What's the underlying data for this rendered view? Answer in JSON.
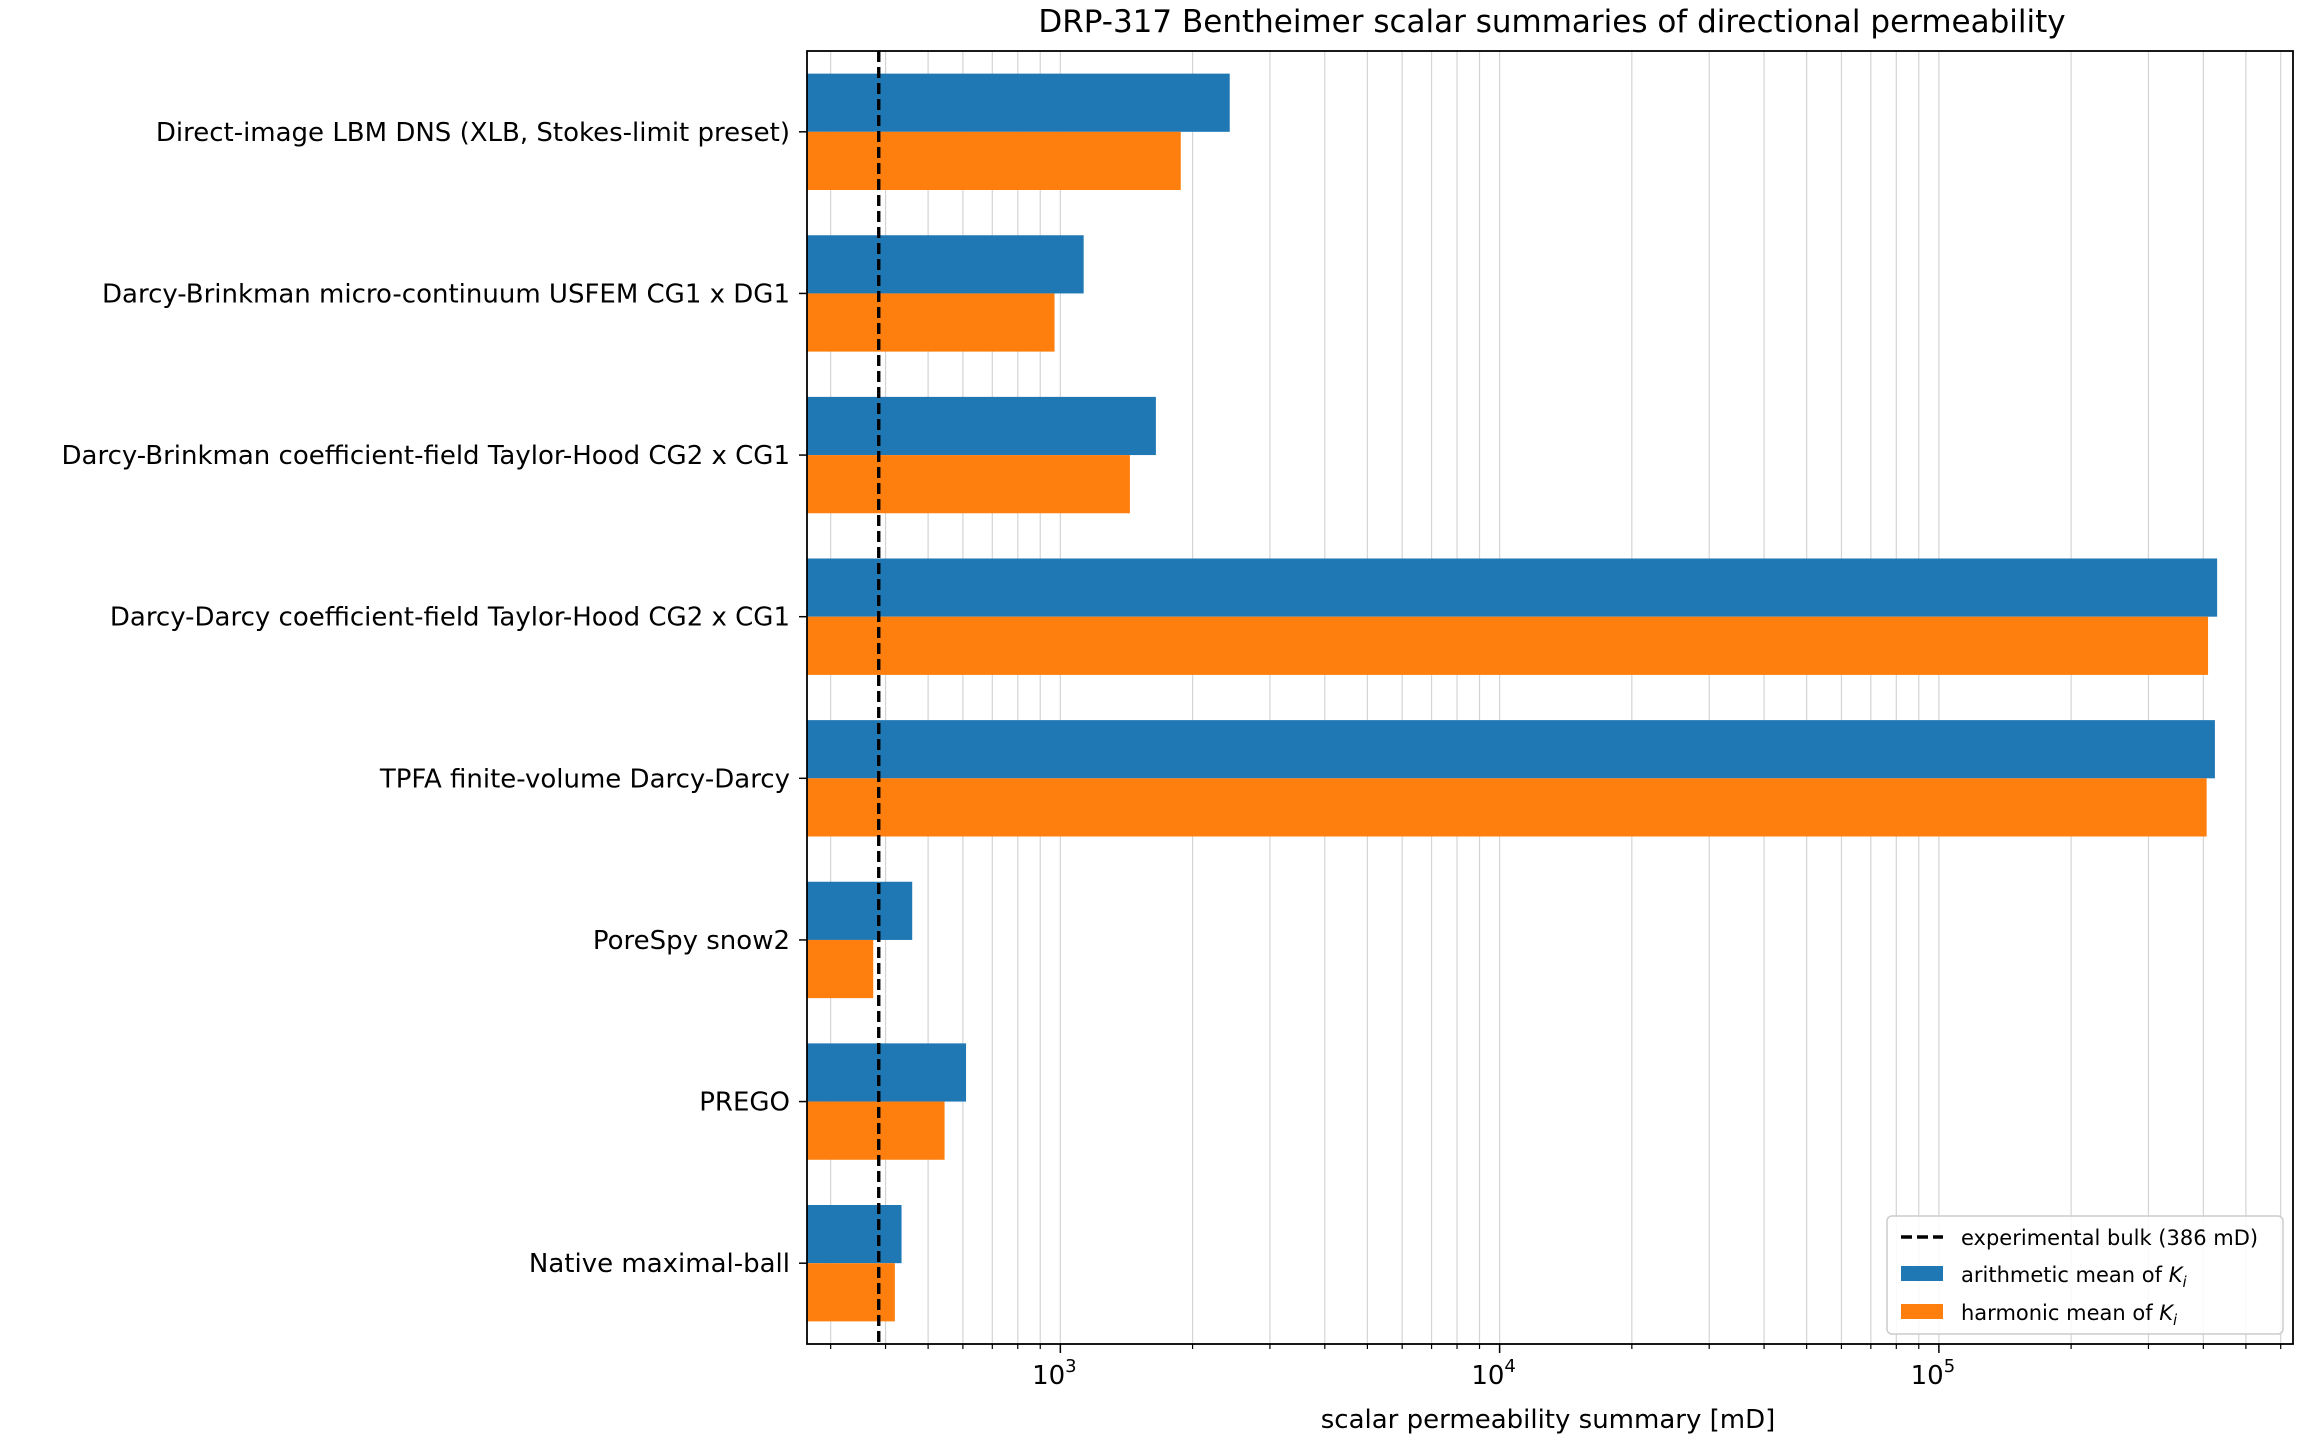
{
  "chart_data": {
    "type": "bar",
    "orientation": "horizontal",
    "title": "DRP-317 Bentheimer scalar summaries of directional permeability",
    "xlabel": "scalar permeability summary [mD]",
    "ylabel": "",
    "xscale": "log",
    "xlim": [
      265,
      640000
    ],
    "xticks": [
      {
        "value": 1000,
        "base": "10",
        "exp": "3"
      },
      {
        "value": 10000,
        "base": "10",
        "exp": "4"
      },
      {
        "value": 100000,
        "base": "10",
        "exp": "5"
      }
    ],
    "grid": "x-axis major and minor",
    "legend_position": "lower-right",
    "categories": [
      "Direct-image LBM DNS (XLB, Stokes-limit preset)",
      "Darcy-Brinkman micro-continuum USFEM CG1 x DG1",
      "Darcy-Brinkman coefficient-field Taylor-Hood CG2 x CG1",
      "Darcy-Darcy coefficient-field Taylor-Hood CG2 x CG1",
      "TPFA finite-volume Darcy-Darcy",
      "PoreSpy snow2",
      "PREGO",
      "Native maximal-ball"
    ],
    "series": [
      {
        "name": "arithmetic mean of K_i",
        "color": "#1f77b4",
        "values": [
          2430,
          1130,
          1650,
          430000,
          425000,
          460,
          610,
          435
        ]
      },
      {
        "name": "harmonic mean of K_i",
        "color": "#ff7f0e",
        "values": [
          1880,
          970,
          1440,
          410000,
          407000,
          375,
          545,
          420
        ]
      }
    ],
    "reference_lines": [
      {
        "label": "experimental bulk (386 mD)",
        "value": 386,
        "style": "dashed",
        "color": "#000000"
      }
    ],
    "legend": {
      "reference_label": "experimental bulk (386 mD)",
      "arith_prefix": "arithmetic mean of ",
      "harm_prefix": "harmonic mean of ",
      "symbol": "K",
      "subscript": "i"
    }
  }
}
